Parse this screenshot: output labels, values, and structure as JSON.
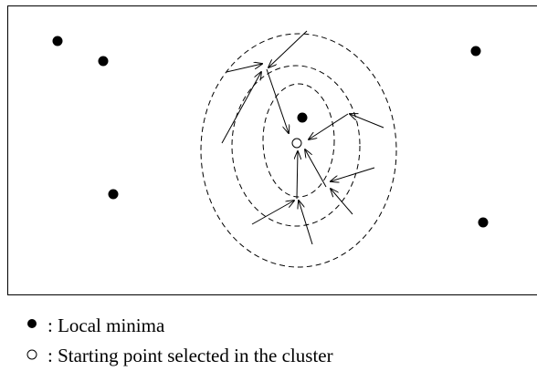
{
  "legend": {
    "items": [
      {
        "symbol": "filled",
        "label": ": Local minima"
      },
      {
        "symbol": "open",
        "label": ": Starting point selected in the cluster"
      }
    ]
  }
}
